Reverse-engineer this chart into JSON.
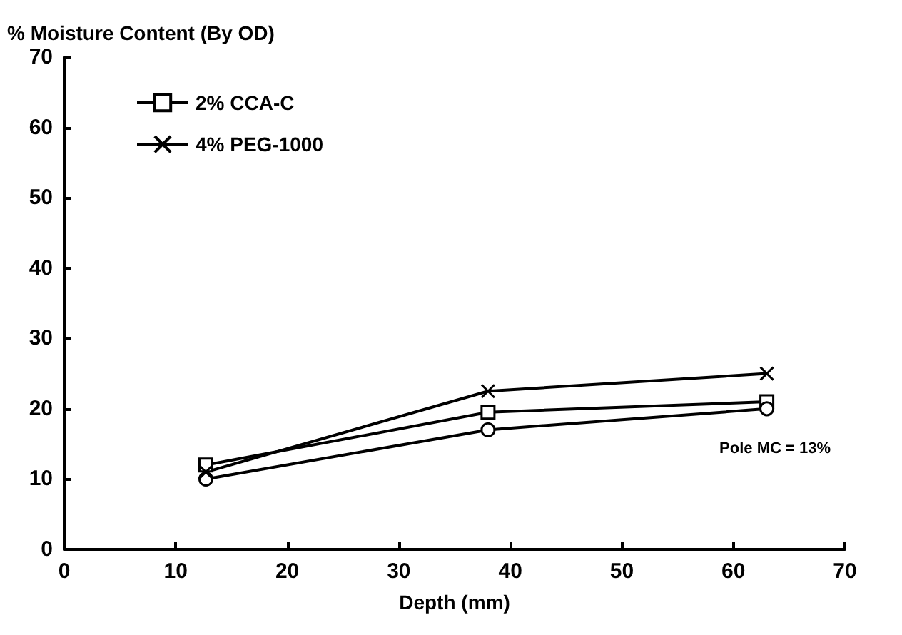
{
  "chart_data": {
    "type": "line",
    "ylabel": "% Moisture Content (By OD)",
    "xlabel": "Depth (mm)",
    "x": [
      12.7,
      38,
      63
    ],
    "series": [
      {
        "name": "2% CCA-C",
        "color": "#000000",
        "marker": "square",
        "values": [
          12,
          19.5,
          21
        ]
      },
      {
        "color": "#000000",
        "marker": "circle",
        "values": [
          10,
          17,
          20
        ]
      },
      {
        "name": "4% PEG-1000",
        "color": "#000000",
        "marker": "cross",
        "values": [
          11,
          22.5,
          25
        ]
      }
    ],
    "xlim": [
      0,
      70
    ],
    "xticks": [
      0,
      10,
      20,
      30,
      40,
      50,
      60,
      70
    ],
    "ylim": [
      0,
      70
    ],
    "yticks": [
      0,
      10,
      20,
      30,
      40,
      50,
      60,
      70
    ],
    "grid": false,
    "legend": "top left",
    "annotations": [
      "Pole MC = 13%"
    ]
  }
}
